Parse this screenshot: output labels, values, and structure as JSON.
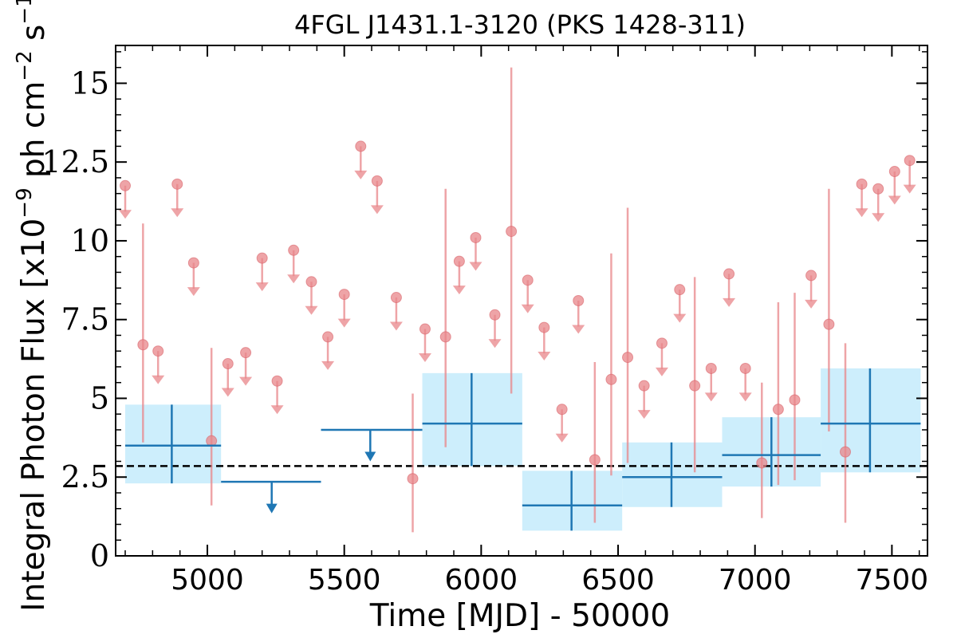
{
  "chart_data": {
    "type": "scatter",
    "title": "4FGL J1431.1-3120 (PKS 1428-311)",
    "xlabel": "Time [MJD] - 50000",
    "ylabel": "Integral Photon Flux [x10^-9 ph cm^-2 s^-1]",
    "ylabel_parts": {
      "pre": "Integral Photon Flux [x10",
      "exp1": "−9",
      "mid": " ph cm",
      "exp2": "−2",
      "mid2": " s",
      "exp3": "−1",
      "post": "]"
    },
    "xlim": [
      4665,
      7630
    ],
    "ylim": [
      0,
      16.2
    ],
    "x_ticks": [
      5000,
      5500,
      6000,
      6500,
      7000,
      7500
    ],
    "x_tick_labels": [
      "5000",
      "5500",
      "6000",
      "6500",
      "7000",
      "7500"
    ],
    "y_ticks": [
      0,
      2.5,
      5,
      7.5,
      10,
      12.5,
      15
    ],
    "y_tick_labels": [
      "0",
      "2.5",
      "5",
      "7.5",
      "10",
      "12.5",
      "15"
    ],
    "reference_line": 2.85,
    "colors": {
      "short_bins": "#e8868a",
      "long_bins": "#1f77b4",
      "error_band": "#cdeefc",
      "reference": "#000000"
    },
    "short_bins_upper_limits": [
      {
        "x": 4700,
        "y": 11.75
      },
      {
        "x": 4820,
        "y": 6.5
      },
      {
        "x": 4890,
        "y": 11.8
      },
      {
        "x": 4950,
        "y": 9.3
      },
      {
        "x": 5075,
        "y": 6.1
      },
      {
        "x": 5140,
        "y": 6.45
      },
      {
        "x": 5200,
        "y": 9.45
      },
      {
        "x": 5255,
        "y": 5.55
      },
      {
        "x": 5315,
        "y": 9.7
      },
      {
        "x": 5380,
        "y": 8.7
      },
      {
        "x": 5440,
        "y": 6.95
      },
      {
        "x": 5500,
        "y": 8.3
      },
      {
        "x": 5560,
        "y": 13.0
      },
      {
        "x": 5620,
        "y": 11.9
      },
      {
        "x": 5690,
        "y": 8.2
      },
      {
        "x": 5795,
        "y": 7.2
      },
      {
        "x": 5920,
        "y": 9.35
      },
      {
        "x": 5980,
        "y": 10.1
      },
      {
        "x": 6050,
        "y": 7.65
      },
      {
        "x": 6170,
        "y": 8.75
      },
      {
        "x": 6230,
        "y": 7.25
      },
      {
        "x": 6295,
        "y": 4.65
      },
      {
        "x": 6355,
        "y": 8.1
      },
      {
        "x": 6595,
        "y": 5.4
      },
      {
        "x": 6660,
        "y": 6.75
      },
      {
        "x": 6725,
        "y": 8.45
      },
      {
        "x": 6840,
        "y": 5.95
      },
      {
        "x": 6905,
        "y": 8.95
      },
      {
        "x": 6965,
        "y": 5.95
      },
      {
        "x": 7205,
        "y": 8.9
      },
      {
        "x": 7390,
        "y": 11.8
      },
      {
        "x": 7450,
        "y": 11.65
      },
      {
        "x": 7510,
        "y": 12.2
      },
      {
        "x": 7565,
        "y": 12.55
      }
    ],
    "short_bins_detections": [
      {
        "x": 4765,
        "y": 6.7,
        "ylo": 3.6,
        "yhi": 10.55
      },
      {
        "x": 5015,
        "y": 3.65,
        "ylo": 1.6,
        "yhi": 6.6
      },
      {
        "x": 5750,
        "y": 2.45,
        "ylo": 0.75,
        "yhi": 5.15
      },
      {
        "x": 5870,
        "y": 6.95,
        "ylo": 3.45,
        "yhi": 11.65
      },
      {
        "x": 6110,
        "y": 10.3,
        "ylo": 5.15,
        "yhi": 15.5
      },
      {
        "x": 6415,
        "y": 3.05,
        "ylo": 1.05,
        "yhi": 6.15
      },
      {
        "x": 6475,
        "y": 5.6,
        "ylo": 2.55,
        "yhi": 9.6
      },
      {
        "x": 6535,
        "y": 6.3,
        "ylo": 2.95,
        "yhi": 11.05
      },
      {
        "x": 6780,
        "y": 5.4,
        "ylo": 2.65,
        "yhi": 8.85
      },
      {
        "x": 7025,
        "y": 2.95,
        "ylo": 1.2,
        "yhi": 5.5
      },
      {
        "x": 7085,
        "y": 4.65,
        "ylo": 2.25,
        "yhi": 8.05
      },
      {
        "x": 7145,
        "y": 4.95,
        "ylo": 2.4,
        "yhi": 8.35
      },
      {
        "x": 7270,
        "y": 7.35,
        "ylo": 3.95,
        "yhi": 11.65
      },
      {
        "x": 7330,
        "y": 3.3,
        "ylo": 1.05,
        "yhi": 6.75
      }
    ],
    "long_bins_detections": [
      {
        "x0": 4700,
        "x1": 5050,
        "xc": 4870,
        "y": 3.5,
        "ylo": 2.3,
        "yhi": 4.8
      },
      {
        "x0": 5785,
        "x1": 6150,
        "xc": 5965,
        "y": 4.2,
        "ylo": 2.85,
        "yhi": 5.8
      },
      {
        "x0": 6150,
        "x1": 6515,
        "xc": 6330,
        "y": 1.6,
        "ylo": 0.8,
        "yhi": 2.7
      },
      {
        "x0": 6515,
        "x1": 6880,
        "xc": 6695,
        "y": 2.5,
        "ylo": 1.55,
        "yhi": 3.6
      },
      {
        "x0": 6880,
        "x1": 7240,
        "xc": 7060,
        "y": 3.2,
        "ylo": 2.2,
        "yhi": 4.4
      },
      {
        "x0": 7240,
        "x1": 7605,
        "xc": 7420,
        "y": 4.2,
        "ylo": 2.65,
        "yhi": 5.95
      }
    ],
    "long_bins_upper_limits": [
      {
        "x0": 5050,
        "x1": 5415,
        "xc": 5235,
        "y": 2.35
      },
      {
        "x0": 5415,
        "x1": 5785,
        "xc": 5595,
        "y": 4.0
      }
    ]
  }
}
